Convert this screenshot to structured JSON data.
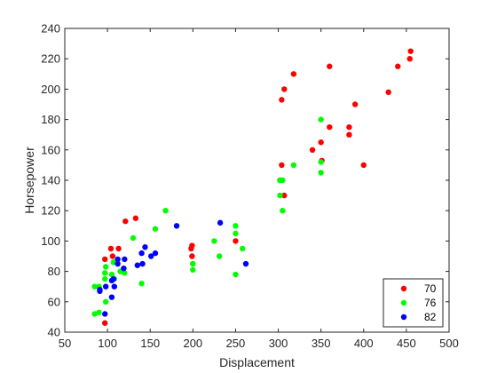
{
  "chart_data": {
    "type": "scatter",
    "xlabel": "Displacement",
    "ylabel": "Horsepower",
    "xlim": [
      50,
      500
    ],
    "ylim": [
      40,
      240
    ],
    "xticks": [
      50,
      100,
      150,
      200,
      250,
      300,
      350,
      400,
      450,
      500
    ],
    "yticks": [
      40,
      60,
      80,
      100,
      120,
      140,
      160,
      180,
      200,
      220,
      240
    ],
    "grid": false,
    "legend_position": "bottom-right",
    "series": [
      {
        "name": "70",
        "color": "#ff0000",
        "points": [
          [
            97,
            46
          ],
          [
            97,
            88
          ],
          [
            104,
            95
          ],
          [
            106,
            90
          ],
          [
            113,
            95
          ],
          [
            121,
            113
          ],
          [
            133,
            115
          ],
          [
            198,
            95
          ],
          [
            199,
            97
          ],
          [
            199,
            90
          ],
          [
            200,
            85
          ],
          [
            250,
            100
          ],
          [
            302,
            140
          ],
          [
            304,
            150
          ],
          [
            304,
            193
          ],
          [
            307,
            130
          ],
          [
            307,
            200
          ],
          [
            318,
            210
          ],
          [
            340,
            160
          ],
          [
            350,
            165
          ],
          [
            351,
            153
          ],
          [
            360,
            215
          ],
          [
            360,
            175
          ],
          [
            383,
            170
          ],
          [
            383,
            175
          ],
          [
            390,
            190
          ],
          [
            400,
            150
          ],
          [
            429,
            198
          ],
          [
            440,
            215
          ],
          [
            454,
            220
          ],
          [
            455,
            225
          ]
        ]
      },
      {
        "name": "76",
        "color": "#00ff00",
        "points": [
          [
            85,
            52
          ],
          [
            85,
            70
          ],
          [
            90,
            70
          ],
          [
            90,
            53
          ],
          [
            97,
            75
          ],
          [
            97,
            79
          ],
          [
            98,
            83
          ],
          [
            98,
            60
          ],
          [
            105,
            78
          ],
          [
            107,
            86
          ],
          [
            108,
            75
          ],
          [
            115,
            80
          ],
          [
            120,
            79
          ],
          [
            130,
            102
          ],
          [
            140,
            72
          ],
          [
            156,
            108
          ],
          [
            168,
            120
          ],
          [
            200,
            81
          ],
          [
            200,
            85
          ],
          [
            225,
            100
          ],
          [
            231,
            90
          ],
          [
            250,
            78
          ],
          [
            250,
            105
          ],
          [
            250,
            110
          ],
          [
            258,
            95
          ],
          [
            302,
            130
          ],
          [
            302,
            140
          ],
          [
            305,
            120
          ],
          [
            305,
            140
          ],
          [
            318,
            150
          ],
          [
            350,
            145
          ],
          [
            350,
            152
          ],
          [
            350,
            180
          ]
        ]
      },
      {
        "name": "82",
        "color": "#0000ff",
        "points": [
          [
            91,
            67
          ],
          [
            91,
            68
          ],
          [
            97,
            52
          ],
          [
            98,
            70
          ],
          [
            105,
            63
          ],
          [
            105,
            74
          ],
          [
            107,
            75
          ],
          [
            108,
            70
          ],
          [
            112,
            88
          ],
          [
            112,
            85
          ],
          [
            119,
            82
          ],
          [
            120,
            88
          ],
          [
            135,
            84
          ],
          [
            140,
            92
          ],
          [
            141,
            85
          ],
          [
            144,
            96
          ],
          [
            151,
            90
          ],
          [
            156,
            92
          ],
          [
            181,
            110
          ],
          [
            232,
            112
          ],
          [
            262,
            85
          ]
        ]
      }
    ]
  }
}
